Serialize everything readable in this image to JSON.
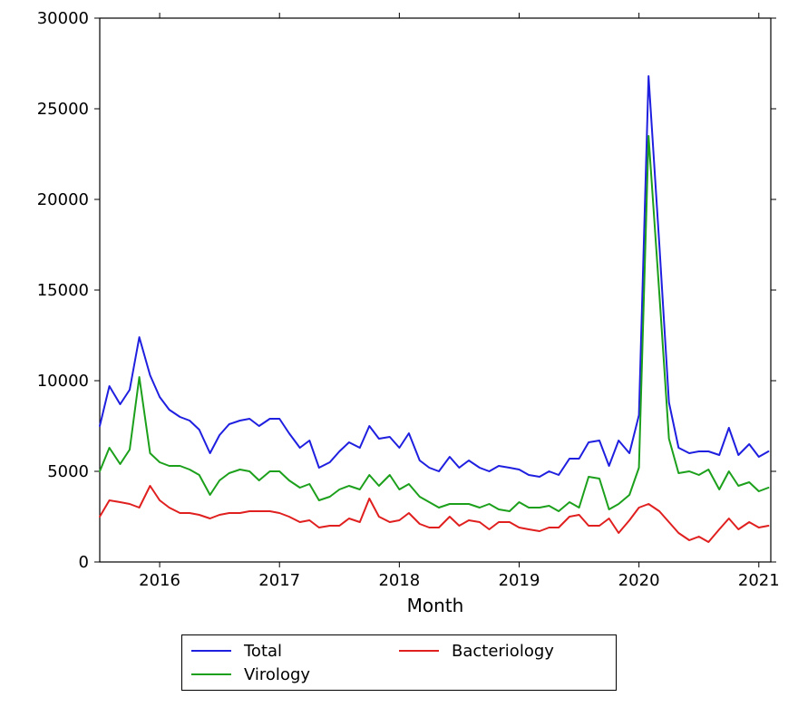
{
  "chart": {
    "type": "line",
    "background_color": "#ffffff",
    "plot_border_color": "#000000",
    "plot_border_width": 1.2,
    "line_width": 2,
    "tick_fontsize": 18,
    "label_fontsize": 20,
    "xlabel": "Month",
    "xlim": [
      2015.5,
      2021.1
    ],
    "ylim": [
      0,
      30000
    ],
    "ytick_step": 5000,
    "yticks": [
      0,
      5000,
      10000,
      15000,
      20000,
      25000,
      30000
    ],
    "xtick_labels": [
      "2016",
      "2017",
      "2018",
      "2019",
      "2020",
      "2021"
    ],
    "xtick_positions": [
      2016,
      2017,
      2018,
      2019,
      2020,
      2021
    ],
    "x": [
      2015.5,
      2015.58,
      2015.67,
      2015.75,
      2015.83,
      2015.92,
      2016.0,
      2016.08,
      2016.17,
      2016.25,
      2016.33,
      2016.42,
      2016.5,
      2016.58,
      2016.67,
      2016.75,
      2016.83,
      2016.92,
      2017.0,
      2017.08,
      2017.17,
      2017.25,
      2017.33,
      2017.42,
      2017.5,
      2017.58,
      2017.67,
      2017.75,
      2017.83,
      2017.92,
      2018.0,
      2018.08,
      2018.17,
      2018.25,
      2018.33,
      2018.42,
      2018.5,
      2018.58,
      2018.67,
      2018.75,
      2018.83,
      2018.92,
      2019.0,
      2019.08,
      2019.17,
      2019.25,
      2019.33,
      2019.42,
      2019.5,
      2019.58,
      2019.67,
      2019.75,
      2019.83,
      2019.92,
      2020.0,
      2020.08,
      2020.17,
      2020.25,
      2020.33,
      2020.42,
      2020.5,
      2020.58,
      2020.67,
      2020.75,
      2020.83,
      2020.92,
      2021.0,
      2021.08
    ],
    "series": [
      {
        "name": "Total",
        "color": "#1f1fe0",
        "y": [
          7500,
          9700,
          8700,
          9500,
          12400,
          10300,
          9100,
          8400,
          8000,
          7800,
          7300,
          6000,
          7000,
          7600,
          7800,
          7900,
          7500,
          7900,
          7900,
          7100,
          6300,
          6700,
          5200,
          5500,
          6100,
          6600,
          6300,
          7500,
          6800,
          6900,
          6300,
          7100,
          5600,
          5200,
          5000,
          5800,
          5200,
          5600,
          5200,
          5000,
          5300,
          5200,
          5100,
          4800,
          4700,
          5000,
          4800,
          5700,
          5700,
          6600,
          6700,
          5300,
          6700,
          6000,
          8100,
          26800,
          17500,
          8800,
          6300,
          6000,
          6100,
          6100,
          5900,
          7400,
          5900,
          6500,
          5800,
          6100
        ]
      },
      {
        "name": "Virology",
        "color": "#1ca01c",
        "y": [
          5000,
          6300,
          5400,
          6200,
          10200,
          6000,
          5500,
          5300,
          5300,
          5100,
          4800,
          3700,
          4500,
          4900,
          5100,
          5000,
          4500,
          5000,
          5000,
          4500,
          4100,
          4300,
          3400,
          3600,
          4000,
          4200,
          4000,
          4800,
          4200,
          4800,
          4000,
          4300,
          3600,
          3300,
          3000,
          3200,
          3200,
          3200,
          3000,
          3200,
          2900,
          2800,
          3300,
          3000,
          3000,
          3100,
          2800,
          3300,
          3000,
          4700,
          4600,
          2900,
          3200,
          3700,
          5200,
          23500,
          14800,
          6800,
          4900,
          5000,
          4800,
          5100,
          4000,
          5000,
          4200,
          4400,
          3900,
          4100
        ]
      },
      {
        "name": "Bacteriology",
        "color": "#e01f1f",
        "y": [
          2500,
          3400,
          3300,
          3200,
          3000,
          4200,
          3400,
          3000,
          2700,
          2700,
          2600,
          2400,
          2600,
          2700,
          2700,
          2800,
          2800,
          2800,
          2700,
          2500,
          2200,
          2300,
          1900,
          2000,
          2000,
          2400,
          2200,
          3500,
          2500,
          2200,
          2300,
          2700,
          2100,
          1900,
          1900,
          2500,
          2000,
          2300,
          2200,
          1800,
          2200,
          2200,
          1900,
          1800,
          1700,
          1900,
          1900,
          2500,
          2600,
          2000,
          2000,
          2400,
          1600,
          2300,
          3000,
          3200,
          2800,
          2200,
          1600,
          1200,
          1400,
          1100,
          1800,
          2400,
          1800,
          2200,
          1900,
          2000
        ]
      }
    ],
    "legend": {
      "labels": [
        "Total",
        "Virology",
        "Bacteriology"
      ],
      "colors": [
        "#1f1fe0",
        "#1ca01c",
        "#e01f1f"
      ],
      "border_color": "#000000",
      "fontsize": 18
    }
  }
}
